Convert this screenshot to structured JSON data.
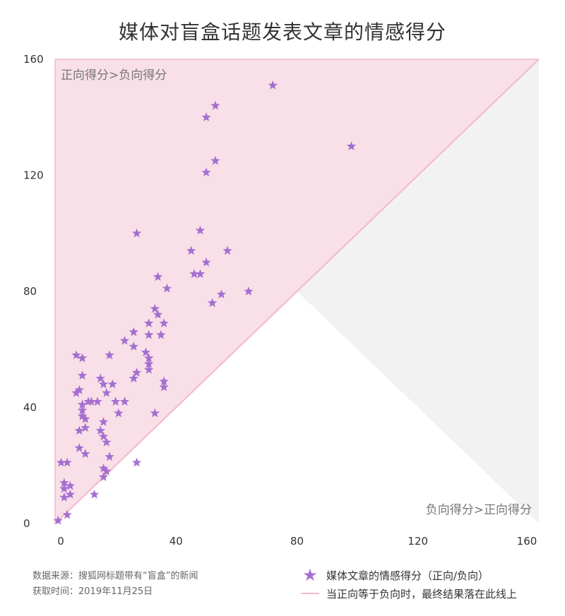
{
  "chart_data": {
    "type": "scatter",
    "title": "媒体文章的情感得分",
    "xlabel": "",
    "ylabel": "",
    "xlim": [
      0,
      160
    ],
    "ylim": [
      0,
      160
    ],
    "xticks": [
      "0",
      "40",
      "80",
      "120",
      "160"
    ],
    "yticks": [
      "0",
      "40",
      "80",
      "120",
      "160"
    ],
    "region_labels": {
      "upper": "正向得分>负向得分",
      "lower": "负向得分>正向得分"
    },
    "colors": {
      "upper_region": "#f8dfe8",
      "lower_region": "#f2f2f2",
      "diagonal": "#f4b8cb",
      "marker": "#a56fd0"
    },
    "series": [
      {
        "name": "媒体文章的情感得分（正向/负向）",
        "marker": "star",
        "points": [
          [
            72,
            151
          ],
          [
            53,
            144
          ],
          [
            50,
            140
          ],
          [
            98,
            130
          ],
          [
            53,
            125
          ],
          [
            50,
            121
          ],
          [
            27,
            100
          ],
          [
            48,
            101
          ],
          [
            45,
            94
          ],
          [
            57,
            94
          ],
          [
            50,
            90
          ],
          [
            46,
            86
          ],
          [
            48,
            86
          ],
          [
            34,
            85
          ],
          [
            37,
            81
          ],
          [
            64,
            80
          ],
          [
            55,
            79
          ],
          [
            52,
            76
          ],
          [
            33,
            74
          ],
          [
            34,
            72
          ],
          [
            31,
            69
          ],
          [
            36,
            69
          ],
          [
            26,
            66
          ],
          [
            31,
            65
          ],
          [
            35,
            65
          ],
          [
            23,
            63
          ],
          [
            26,
            61
          ],
          [
            30,
            59
          ],
          [
            31,
            57
          ],
          [
            18,
            58
          ],
          [
            7,
            58
          ],
          [
            9,
            57
          ],
          [
            31,
            55
          ],
          [
            31,
            53
          ],
          [
            27,
            52
          ],
          [
            26,
            50
          ],
          [
            9,
            51
          ],
          [
            15,
            50
          ],
          [
            16,
            48
          ],
          [
            19,
            48
          ],
          [
            36,
            49
          ],
          [
            36,
            47
          ],
          [
            8,
            46
          ],
          [
            7,
            45
          ],
          [
            17,
            45
          ],
          [
            14,
            42
          ],
          [
            11,
            42
          ],
          [
            12,
            42
          ],
          [
            23,
            42
          ],
          [
            20,
            42
          ],
          [
            9,
            41
          ],
          [
            9,
            39
          ],
          [
            9,
            37
          ],
          [
            33,
            38
          ],
          [
            21,
            38
          ],
          [
            10,
            36
          ],
          [
            16,
            35
          ],
          [
            15,
            32
          ],
          [
            16,
            30
          ],
          [
            10,
            33
          ],
          [
            8,
            32
          ],
          [
            17,
            28
          ],
          [
            8,
            26
          ],
          [
            10,
            24
          ],
          [
            18,
            23
          ],
          [
            27,
            21
          ],
          [
            4,
            21
          ],
          [
            2,
            21
          ],
          [
            16,
            19
          ],
          [
            17,
            18
          ],
          [
            16,
            16
          ],
          [
            3,
            14
          ],
          [
            5,
            13
          ],
          [
            3,
            12
          ],
          [
            13,
            10
          ],
          [
            5,
            10
          ],
          [
            3,
            9
          ],
          [
            4,
            3
          ],
          [
            1,
            1
          ]
        ]
      }
    ],
    "diagonal_name": "当正向等于负向时，最终结果落在此线上",
    "legend": "bottom-right"
  },
  "footer": {
    "source": "数据来源：搜狐网标题带有“盲盒”的新闻",
    "date": "获取时间：2019年11月25日"
  },
  "page_title": "媒体对盲盒话题发表文章的情感得分"
}
